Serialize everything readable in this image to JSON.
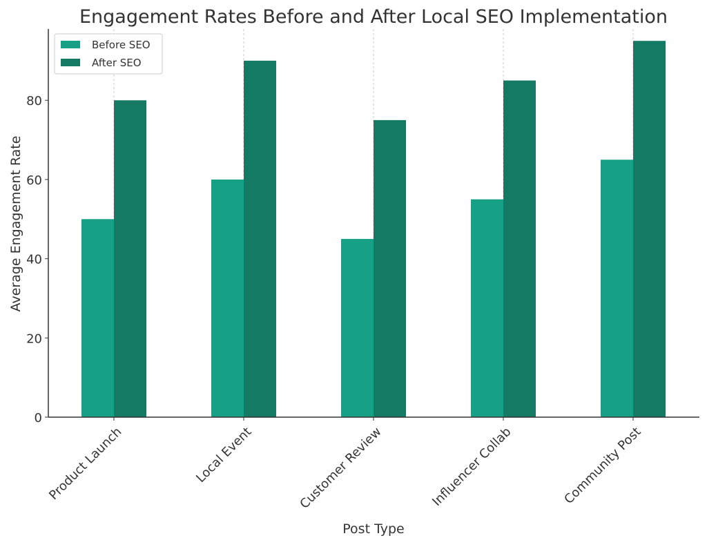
{
  "chart_data": {
    "type": "bar",
    "title": "Engagement Rates Before and After Local SEO Implementation",
    "xlabel": "Post Type",
    "ylabel": "Average Engagement Rate",
    "categories": [
      "Product Launch",
      "Local Event",
      "Customer Review",
      "Influencer Collab",
      "Community Post"
    ],
    "series": [
      {
        "name": "Before SEO",
        "values": [
          50,
          60,
          45,
          55,
          65
        ],
        "color": "#16a085"
      },
      {
        "name": "After SEO",
        "values": [
          80,
          90,
          75,
          85,
          95
        ],
        "color": "#157a63"
      }
    ],
    "ylim": [
      0,
      98
    ],
    "yticks": [
      0,
      20,
      40,
      60,
      80
    ],
    "grid": "x-vertical-dashed",
    "legend": "top-left"
  }
}
